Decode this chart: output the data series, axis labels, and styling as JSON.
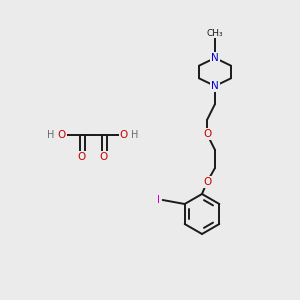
{
  "bg_color": "#ebebeb",
  "bond_color": "#1a1a1a",
  "atom_colors": {
    "N": "#0000cc",
    "O": "#cc0000",
    "I": "#cc00cc",
    "C": "#1a1a1a",
    "H": "#6b6b6b"
  },
  "figsize": [
    3.0,
    3.0
  ],
  "dpi": 100
}
